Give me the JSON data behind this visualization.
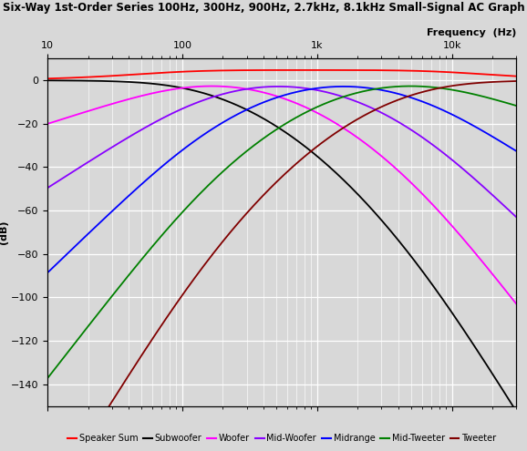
{
  "title": "Six-Way 1st-Order Series 100Hz, 300Hz, 900Hz, 2.7kHz, 8.1kHz Small-Signal AC Graph",
  "xlabel": "Frequency  (Hz)",
  "ylabel": "(dB)",
  "freq_min": 10,
  "freq_max": 30000,
  "ylim": [
    -150,
    10
  ],
  "yticks": [
    0,
    -20,
    -40,
    -60,
    -80,
    -100,
    -120,
    -140
  ],
  "crossover_freqs": [
    100,
    300,
    900,
    2700,
    8100
  ],
  "legend_labels": [
    "Speaker Sum",
    "Subwoofer",
    "Woofer",
    "Mid-Woofer",
    "Midrange",
    "Mid-Tweeter",
    "Tweeter"
  ],
  "legend_colors": [
    "#ff0000",
    "#000000",
    "#ff00ff",
    "#8800ff",
    "#0000ff",
    "#008000",
    "#800000"
  ],
  "line_colors": {
    "speaker_sum": "#ff0000",
    "subwoofer": "#000000",
    "woofer": "#ff00ff",
    "mid_woofer": "#8800ff",
    "midrange": "#0000ff",
    "mid_tweeter": "#008000",
    "tweeter": "#800000"
  },
  "background_color": "#d8d8d8",
  "grid_color": "#ffffff",
  "figsize": [
    5.78,
    4.95
  ],
  "dpi": 100
}
